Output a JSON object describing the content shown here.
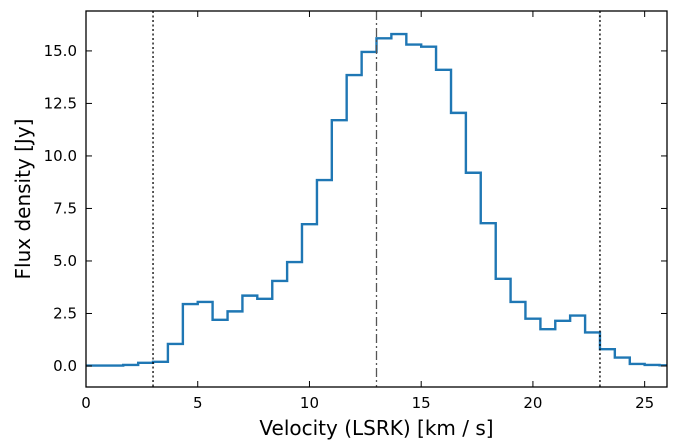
{
  "chart_data": {
    "type": "line",
    "drawstyle": "steps-mid",
    "xlabel": "Velocity (LSRK) [km / s]",
    "ylabel": "Flux density [Jy]",
    "xlim": [
      0,
      26
    ],
    "ylim": [
      -1.0,
      16.9
    ],
    "xticks": [
      0,
      5,
      10,
      15,
      20,
      25
    ],
    "xtick_labels": [
      "0",
      "5",
      "10",
      "15",
      "20",
      "25"
    ],
    "yticks": [
      0.0,
      2.5,
      5.0,
      7.5,
      10.0,
      12.5,
      15.0
    ],
    "ytick_labels": [
      "0.0",
      "2.5",
      "5.0",
      "7.5",
      "10.0",
      "12.5",
      "15.0"
    ],
    "grid": false,
    "series": [
      {
        "color": "#1f77b4",
        "x": [
          0.0,
          0.67,
          1.33,
          2.0,
          2.67,
          3.33,
          4.0,
          4.67,
          5.33,
          6.0,
          6.67,
          7.33,
          8.0,
          8.67,
          9.33,
          10.0,
          10.67,
          11.33,
          12.0,
          12.67,
          13.33,
          14.0,
          14.67,
          15.33,
          16.0,
          16.67,
          17.33,
          18.0,
          18.67,
          19.33,
          20.0,
          20.67,
          21.33,
          22.0,
          22.67,
          23.33,
          24.0,
          24.67,
          25.33,
          26.0
        ],
        "y": [
          0.02,
          0.02,
          0.02,
          0.05,
          0.15,
          0.2,
          1.05,
          2.95,
          3.05,
          2.2,
          2.6,
          3.35,
          3.2,
          4.05,
          4.95,
          6.75,
          8.85,
          11.7,
          13.85,
          14.95,
          15.6,
          15.8,
          15.3,
          15.2,
          14.1,
          12.05,
          9.2,
          6.8,
          4.15,
          3.05,
          2.25,
          1.75,
          2.15,
          2.4,
          1.6,
          0.8,
          0.4,
          0.1,
          0.05,
          0.03
        ]
      }
    ],
    "vlines": [
      {
        "x": 3.0,
        "style": "dotted",
        "color": "#000000"
      },
      {
        "x": 13.0,
        "style": "dashdot",
        "color": "#555555"
      },
      {
        "x": 23.0,
        "style": "dotted",
        "color": "#000000"
      }
    ]
  }
}
